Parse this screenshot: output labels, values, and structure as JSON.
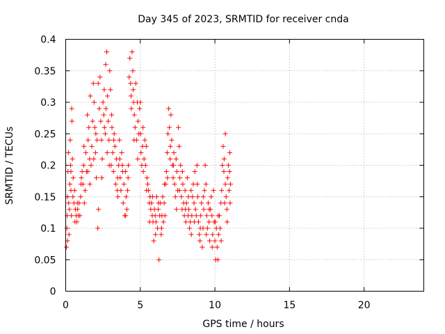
{
  "chart_data": {
    "type": "scatter",
    "title": "Day 345 of 2023, SRMTID for receiver cnda",
    "xlabel": "GPS time / hours",
    "ylabel": "SRMTID / TECUs",
    "xlim": [
      0,
      24
    ],
    "ylim": [
      0,
      0.4
    ],
    "xticks": [
      0,
      5,
      10,
      15,
      20
    ],
    "xtick_labels": [
      "0",
      "5",
      "10",
      "15",
      "20"
    ],
    "yticks": [
      0,
      0.05,
      0.1,
      0.15,
      0.2,
      0.25,
      0.3,
      0.35,
      0.4
    ],
    "ytick_labels": [
      "0",
      "0.05",
      "0.1",
      "0.15",
      "0.2",
      "0.25",
      "0.3",
      "0.35",
      "0.4"
    ],
    "grid": true,
    "marker": "+",
    "marker_color": "#ff0000",
    "series": [
      {
        "name": "SRMTID",
        "points": [
          [
            0.05,
            0.07
          ],
          [
            0.08,
            0.1
          ],
          [
            0.1,
            0.12
          ],
          [
            0.12,
            0.15
          ],
          [
            0.15,
            0.19
          ],
          [
            0.18,
            0.22
          ],
          [
            0.2,
            0.14
          ],
          [
            0.22,
            0.09
          ],
          [
            0.25,
            0.13
          ],
          [
            0.28,
            0.17
          ],
          [
            0.3,
            0.24
          ],
          [
            0.33,
            0.2
          ],
          [
            0.35,
            0.16
          ],
          [
            0.38,
            0.12
          ],
          [
            0.4,
            0.29
          ],
          [
            0.42,
            0.27
          ],
          [
            0.45,
            0.21
          ],
          [
            0.48,
            0.15
          ],
          [
            0.5,
            0.18
          ],
          [
            0.55,
            0.14
          ],
          [
            0.6,
            0.16
          ],
          [
            0.65,
            0.13
          ],
          [
            0.7,
            0.12
          ],
          [
            0.75,
            0.11
          ],
          [
            0.8,
            0.13
          ],
          [
            0.85,
            0.12
          ],
          [
            0.9,
            0.14
          ],
          [
            0.95,
            0.12
          ],
          [
            1.0,
            0.15
          ],
          [
            1.05,
            0.18
          ],
          [
            1.1,
            0.19
          ],
          [
            1.15,
            0.17
          ],
          [
            1.2,
            0.2
          ],
          [
            1.25,
            0.14
          ],
          [
            1.3,
            0.16
          ],
          [
            1.35,
            0.22
          ],
          [
            1.4,
            0.19
          ],
          [
            1.45,
            0.28
          ],
          [
            1.5,
            0.24
          ],
          [
            1.55,
            0.26
          ],
          [
            1.6,
            0.21
          ],
          [
            1.65,
            0.31
          ],
          [
            1.7,
            0.2
          ],
          [
            1.75,
            0.23
          ],
          [
            1.8,
            0.27
          ],
          [
            1.85,
            0.33
          ],
          [
            1.9,
            0.3
          ],
          [
            1.95,
            0.26
          ],
          [
            2.0,
            0.22
          ],
          [
            2.05,
            0.18
          ],
          [
            2.1,
            0.24
          ],
          [
            2.15,
            0.1
          ],
          [
            2.2,
            0.13
          ],
          [
            2.25,
            0.29
          ],
          [
            2.3,
            0.34
          ],
          [
            2.35,
            0.27
          ],
          [
            2.4,
            0.24
          ],
          [
            2.45,
            0.21
          ],
          [
            2.5,
            0.3
          ],
          [
            2.55,
            0.28
          ],
          [
            2.6,
            0.26
          ],
          [
            2.65,
            0.25
          ],
          [
            2.7,
            0.29
          ],
          [
            2.75,
            0.38
          ],
          [
            2.8,
            0.31
          ],
          [
            2.85,
            0.27
          ],
          [
            2.9,
            0.24
          ],
          [
            2.95,
            0.35
          ],
          [
            3.0,
            0.32
          ],
          [
            3.05,
            0.2
          ],
          [
            3.1,
            0.26
          ],
          [
            3.15,
            0.22
          ],
          [
            3.2,
            0.19
          ],
          [
            3.25,
            0.25
          ],
          [
            3.3,
            0.23
          ],
          [
            3.35,
            0.17
          ],
          [
            3.4,
            0.21
          ],
          [
            3.45,
            0.16
          ],
          [
            3.5,
            0.15
          ],
          [
            3.55,
            0.2
          ],
          [
            3.6,
            0.24
          ],
          [
            3.65,
            0.18
          ],
          [
            3.7,
            0.16
          ],
          [
            3.75,
            0.22
          ],
          [
            3.8,
            0.2
          ],
          [
            3.85,
            0.14
          ],
          [
            3.9,
            0.17
          ],
          [
            3.95,
            0.12
          ],
          [
            4.0,
            0.19
          ],
          [
            4.05,
            0.15
          ],
          [
            4.1,
            0.13
          ],
          [
            4.15,
            0.16
          ],
          [
            4.2,
            0.2
          ],
          [
            4.25,
            0.34
          ],
          [
            4.3,
            0.37
          ],
          [
            4.35,
            0.33
          ],
          [
            4.4,
            0.29
          ],
          [
            4.45,
            0.38
          ],
          [
            4.5,
            0.35
          ],
          [
            4.55,
            0.3
          ],
          [
            4.6,
            0.28
          ],
          [
            4.65,
            0.26
          ],
          [
            4.7,
            0.33
          ],
          [
            4.75,
            0.24
          ],
          [
            4.8,
            0.3
          ],
          [
            4.85,
            0.27
          ],
          [
            4.9,
            0.25
          ],
          [
            4.95,
            0.29
          ],
          [
            5.0,
            0.3
          ],
          [
            5.05,
            0.22
          ],
          [
            5.1,
            0.2
          ],
          [
            5.15,
            0.23
          ],
          [
            5.2,
            0.19
          ],
          [
            5.25,
            0.21
          ],
          [
            5.3,
            0.24
          ],
          [
            5.35,
            0.2
          ],
          [
            5.4,
            0.23
          ],
          [
            5.45,
            0.18
          ],
          [
            5.5,
            0.17
          ],
          [
            5.55,
            0.16
          ],
          [
            5.6,
            0.14
          ],
          [
            5.65,
            0.15
          ],
          [
            5.7,
            0.13
          ],
          [
            5.75,
            0.14
          ],
          [
            5.8,
            0.12
          ],
          [
            5.85,
            0.11
          ],
          [
            5.9,
            0.08
          ],
          [
            5.95,
            0.13
          ],
          [
            6.0,
            0.12
          ],
          [
            6.05,
            0.11
          ],
          [
            6.1,
            0.15
          ],
          [
            6.15,
            0.1
          ],
          [
            6.2,
            0.13
          ],
          [
            6.25,
            0.05
          ],
          [
            6.3,
            0.12
          ],
          [
            6.35,
            0.14
          ],
          [
            6.4,
            0.09
          ],
          [
            6.45,
            0.12
          ],
          [
            6.5,
            0.15
          ],
          [
            6.55,
            0.11
          ],
          [
            6.6,
            0.14
          ],
          [
            6.65,
            0.12
          ],
          [
            6.7,
            0.17
          ],
          [
            6.75,
            0.19
          ],
          [
            6.8,
            0.22
          ],
          [
            6.85,
            0.25
          ],
          [
            6.9,
            0.29
          ],
          [
            6.95,
            0.26
          ],
          [
            7.0,
            0.21
          ],
          [
            7.05,
            0.28
          ],
          [
            7.1,
            0.24
          ],
          [
            7.15,
            0.2
          ],
          [
            7.2,
            0.18
          ],
          [
            7.25,
            0.22
          ],
          [
            7.3,
            0.17
          ],
          [
            7.35,
            0.15
          ],
          [
            7.4,
            0.21
          ],
          [
            7.45,
            0.19
          ],
          [
            7.5,
            0.16
          ],
          [
            7.55,
            0.26
          ],
          [
            7.6,
            0.23
          ],
          [
            7.65,
            0.18
          ],
          [
            7.7,
            0.2
          ],
          [
            7.75,
            0.15
          ],
          [
            7.8,
            0.13
          ],
          [
            7.85,
            0.17
          ],
          [
            7.9,
            0.14
          ],
          [
            7.95,
            0.12
          ],
          [
            8.0,
            0.16
          ],
          [
            8.05,
            0.11
          ],
          [
            8.1,
            0.14
          ],
          [
            8.15,
            0.18
          ],
          [
            8.2,
            0.12
          ],
          [
            8.25,
            0.13
          ],
          [
            8.3,
            0.1
          ],
          [
            8.35,
            0.11
          ],
          [
            8.4,
            0.16
          ],
          [
            8.45,
            0.12
          ],
          [
            8.5,
            0.15
          ],
          [
            8.55,
            0.17
          ],
          [
            8.6,
            0.14
          ],
          [
            8.65,
            0.19
          ],
          [
            8.7,
            0.13
          ],
          [
            8.75,
            0.12
          ],
          [
            8.8,
            0.2
          ],
          [
            8.85,
            0.15
          ],
          [
            8.9,
            0.11
          ],
          [
            8.95,
            0.09
          ],
          [
            9.0,
            0.08
          ],
          [
            9.05,
            0.12
          ],
          [
            9.1,
            0.14
          ],
          [
            9.15,
            0.07
          ],
          [
            9.2,
            0.1
          ],
          [
            9.25,
            0.13
          ],
          [
            9.3,
            0.16
          ],
          [
            9.35,
            0.2
          ],
          [
            9.4,
            0.17
          ],
          [
            9.45,
            0.12
          ],
          [
            9.5,
            0.1
          ],
          [
            9.55,
            0.14
          ],
          [
            9.6,
            0.11
          ],
          [
            9.65,
            0.08
          ],
          [
            9.7,
            0.13
          ],
          [
            9.75,
            0.15
          ],
          [
            9.8,
            0.12
          ],
          [
            9.85,
            0.09
          ],
          [
            9.9,
            0.16
          ],
          [
            9.95,
            0.11
          ],
          [
            10.0,
            0.08
          ],
          [
            10.05,
            0.05
          ],
          [
            10.1,
            0.1
          ],
          [
            10.15,
            0.07
          ],
          [
            10.2,
            0.05
          ],
          [
            10.25,
            0.09
          ],
          [
            10.3,
            0.12
          ],
          [
            10.35,
            0.1
          ],
          [
            10.4,
            0.14
          ],
          [
            10.45,
            0.16
          ],
          [
            10.5,
            0.2
          ],
          [
            10.55,
            0.23
          ],
          [
            10.6,
            0.19
          ],
          [
            10.65,
            0.14
          ],
          [
            10.7,
            0.17
          ],
          [
            10.75,
            0.15
          ],
          [
            10.8,
            0.13
          ],
          [
            10.85,
            0.18
          ],
          [
            10.9,
            0.2
          ],
          [
            10.95,
            0.16
          ],
          [
            11.0,
            0.22
          ],
          [
            11.05,
            0.17
          ],
          [
            0.12,
            0.08
          ],
          [
            0.35,
            0.19
          ],
          [
            0.62,
            0.11
          ],
          [
            0.78,
            0.14
          ],
          [
            1.02,
            0.17
          ],
          [
            1.22,
            0.23
          ],
          [
            1.48,
            0.19
          ],
          [
            1.62,
            0.17
          ],
          [
            1.88,
            0.21
          ],
          [
            2.02,
            0.25
          ],
          [
            2.18,
            0.33
          ],
          [
            2.42,
            0.18
          ],
          [
            2.58,
            0.32
          ],
          [
            2.78,
            0.22
          ],
          [
            2.92,
            0.2
          ],
          [
            3.08,
            0.28
          ],
          [
            3.22,
            0.24
          ],
          [
            3.48,
            0.18
          ],
          [
            3.62,
            0.21
          ],
          [
            3.82,
            0.19
          ],
          [
            4.02,
            0.12
          ],
          [
            4.18,
            0.18
          ],
          [
            4.38,
            0.31
          ],
          [
            4.58,
            0.24
          ],
          [
            4.82,
            0.21
          ],
          [
            5.02,
            0.25
          ],
          [
            5.18,
            0.26
          ],
          [
            5.42,
            0.16
          ],
          [
            5.62,
            0.11
          ],
          [
            5.82,
            0.15
          ],
          [
            6.02,
            0.09
          ],
          [
            6.22,
            0.14
          ],
          [
            6.42,
            0.1
          ],
          [
            6.62,
            0.17
          ],
          [
            6.82,
            0.18
          ],
          [
            7.02,
            0.23
          ],
          [
            7.22,
            0.2
          ],
          [
            7.42,
            0.13
          ],
          [
            7.62,
            0.16
          ],
          [
            7.82,
            0.19
          ],
          [
            8.02,
            0.13
          ],
          [
            8.22,
            0.15
          ],
          [
            8.42,
            0.09
          ],
          [
            8.62,
            0.11
          ],
          [
            8.82,
            0.17
          ],
          [
            9.02,
            0.1
          ],
          [
            9.22,
            0.15
          ],
          [
            9.42,
            0.09
          ],
          [
            9.62,
            0.13
          ],
          [
            9.82,
            0.07
          ],
          [
            10.02,
            0.11
          ],
          [
            10.22,
            0.12
          ],
          [
            10.42,
            0.08
          ],
          [
            10.62,
            0.21
          ],
          [
            10.82,
            0.11
          ],
          [
            10.98,
            0.19
          ],
          [
            11.02,
            0.14
          ],
          [
            10.7,
            0.25
          ],
          [
            2.68,
            0.36
          ],
          [
            4.52,
            0.32
          ]
        ]
      }
    ]
  }
}
